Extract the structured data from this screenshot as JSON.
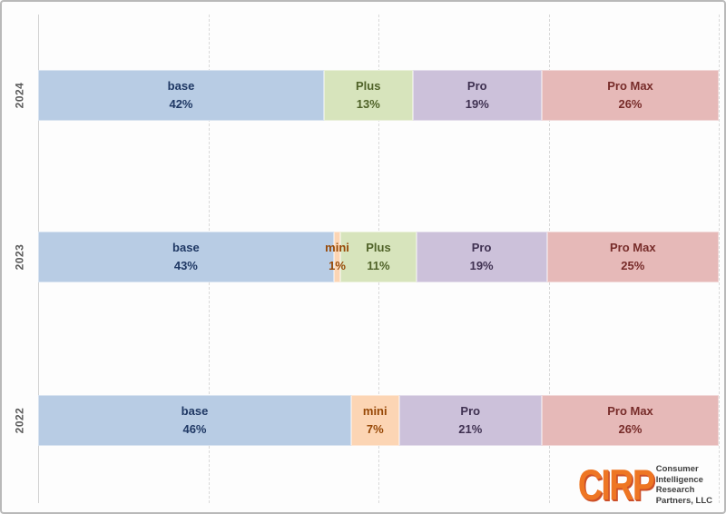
{
  "chart_data": {
    "type": "bar",
    "subtype": "horizontal-100pct-stacked",
    "title": "",
    "xlabel": "",
    "ylabel": "",
    "categories": [
      "2024",
      "2023",
      "2022"
    ],
    "series_labels": [
      "base",
      "mini",
      "Plus",
      "Pro",
      "Pro Max"
    ],
    "x_axis": {
      "range_pct": [
        0,
        100
      ],
      "gridlines_pct": [
        25,
        50,
        75,
        100
      ],
      "grid_style": "dashed",
      "tick_labels_visible": false
    },
    "rows": [
      {
        "year": "2024",
        "segments": [
          {
            "label": "base",
            "pct": "42%",
            "value": 42,
            "fill": "#B8CCE4",
            "text": "#1F3864"
          },
          {
            "label": "Plus",
            "pct": "13%",
            "value": 13,
            "fill": "#D7E4BC",
            "text": "#4F6228"
          },
          {
            "label": "Pro",
            "pct": "19%",
            "value": 19,
            "fill": "#CCC1DA",
            "text": "#3F3151"
          },
          {
            "label": "Pro Max",
            "pct": "26%",
            "value": 26,
            "fill": "#E6B9B8",
            "text": "#772C2A"
          }
        ]
      },
      {
        "year": "2023",
        "segments": [
          {
            "label": "base",
            "pct": "43%",
            "value": 43,
            "fill": "#B8CCE4",
            "text": "#1F3864"
          },
          {
            "label": "mini",
            "pct": "1%",
            "value": 1,
            "fill": "#FCD5B4",
            "text": "#974806"
          },
          {
            "label": "Plus",
            "pct": "11%",
            "value": 11,
            "fill": "#D7E4BC",
            "text": "#4F6228"
          },
          {
            "label": "Pro",
            "pct": "19%",
            "value": 19,
            "fill": "#CCC1DA",
            "text": "#3F3151"
          },
          {
            "label": "Pro Max",
            "pct": "25%",
            "value": 25,
            "fill": "#E6B9B8",
            "text": "#772C2A"
          }
        ]
      },
      {
        "year": "2022",
        "segments": [
          {
            "label": "base",
            "pct": "46%",
            "value": 46,
            "fill": "#B8CCE4",
            "text": "#1F3864"
          },
          {
            "label": "mini",
            "pct": "7%",
            "value": 7,
            "fill": "#FCD5B4",
            "text": "#974806"
          },
          {
            "label": "Pro",
            "pct": "21%",
            "value": 21,
            "fill": "#CCC1DA",
            "text": "#3F3151"
          },
          {
            "label": "Pro Max",
            "pct": "26%",
            "value": 26,
            "fill": "#E6B9B8",
            "text": "#772C2A"
          }
        ]
      }
    ]
  },
  "logo": {
    "wordmark": "CIRP",
    "wordmark_color": "#EE7623",
    "lines": [
      "Consumer",
      "Intelligence",
      "Research",
      "Partners, LLC"
    ],
    "text_color": "#3F3F3F"
  }
}
